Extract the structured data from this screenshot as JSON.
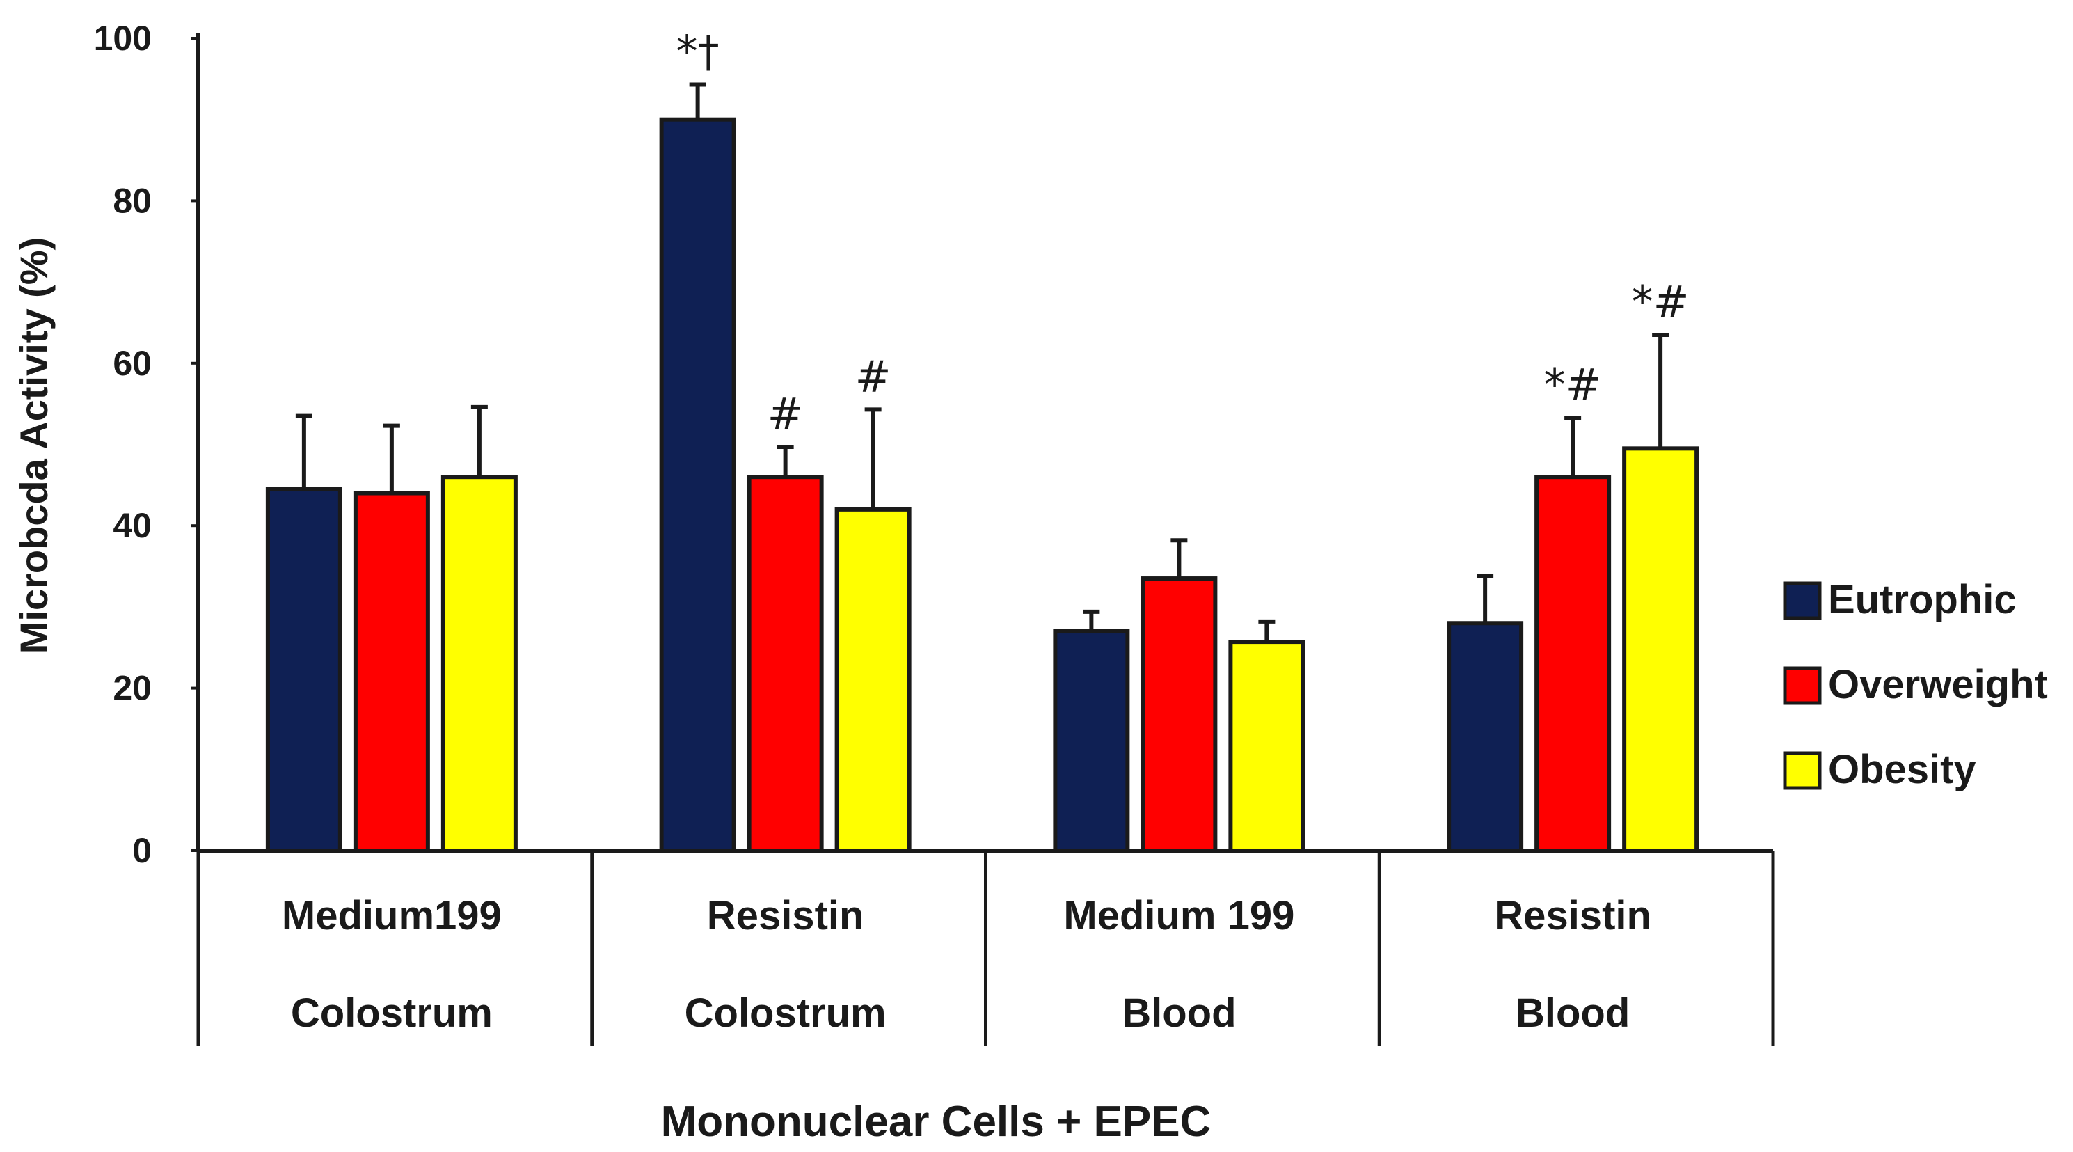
{
  "chart_data": {
    "type": "bar",
    "title": "",
    "xlabel": "Mononuclear Cells + EPEC",
    "ylabel": "Microbcda Activity (%)",
    "ylim": [
      0,
      100
    ],
    "yticks": [
      "0",
      "20",
      "40",
      "60",
      "80",
      "100"
    ],
    "grid": false,
    "legend_position": "right",
    "categories": [
      {
        "line1": "Medium199",
        "line2": "Colostrum"
      },
      {
        "line1": "Resistin",
        "line2": "Colostrum"
      },
      {
        "line1": "Medium 199",
        "line2": "Blood"
      },
      {
        "line1": "Resistin",
        "line2": "Blood"
      }
    ],
    "series": [
      {
        "name": "Eutrophic",
        "color": "#0f2054",
        "values": [
          44.5,
          90,
          27,
          28
        ],
        "errors": [
          9,
          4.3,
          2.4,
          5.8
        ],
        "annotations": [
          "",
          "*†",
          "",
          ""
        ]
      },
      {
        "name": "Overweight",
        "color": "#ff0000",
        "values": [
          44,
          46,
          33.5,
          46
        ],
        "errors": [
          8.3,
          3.7,
          4.7,
          7.3
        ],
        "annotations": [
          "",
          "#",
          "",
          "*#"
        ]
      },
      {
        "name": "Obesity",
        "color": "#ffff00",
        "values": [
          46,
          42,
          25.7,
          49.5
        ],
        "errors": [
          8.6,
          12.3,
          2.5,
          14
        ],
        "annotations": [
          "",
          "#",
          "",
          "*#"
        ]
      }
    ]
  }
}
